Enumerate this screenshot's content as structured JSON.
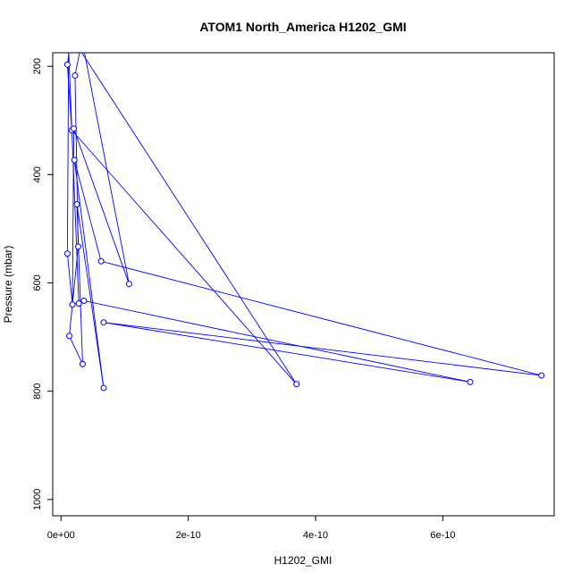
{
  "chart_data": {
    "type": "line",
    "title": "ATOM1 North_America H1202_GMI",
    "xlabel": "H1202_GMI",
    "ylabel": "Pressure (mbar)",
    "xlim": [
      -1.3e-11,
      7.75e-10
    ],
    "ylim": [
      1030,
      175
    ],
    "y_inverted": true,
    "grid": false,
    "legend": "none",
    "x_ticks": [
      {
        "value": 0,
        "label": "0e+00"
      },
      {
        "value": 2e-10,
        "label": "2e-10"
      },
      {
        "value": 4e-10,
        "label": "4e-10"
      },
      {
        "value": 6e-10,
        "label": "6e-10"
      }
    ],
    "y_ticks": [
      {
        "value": 200,
        "label": "200"
      },
      {
        "value": 400,
        "label": "400"
      },
      {
        "value": 600,
        "label": "600"
      },
      {
        "value": 800,
        "label": "800"
      },
      {
        "value": 1000,
        "label": "1000"
      }
    ],
    "series": [
      {
        "color": "#0000ff",
        "points": [
          {
            "x": 1.3e-11,
            "y": 170
          },
          {
            "x": 1e-11,
            "y": 197
          },
          {
            "x": 1.7e-11,
            "y": 318
          },
          {
            "x": 3.7e-10,
            "y": 787
          },
          {
            "x": 3e-11,
            "y": 170
          },
          {
            "x": 2.2e-11,
            "y": 217
          },
          {
            "x": 2.7e-11,
            "y": 533
          },
          {
            "x": 1.3e-11,
            "y": 698
          },
          {
            "x": 3.4e-11,
            "y": 750
          },
          {
            "x": 2.5e-11,
            "y": 455
          },
          {
            "x": 6.7e-11,
            "y": 794
          },
          {
            "x": 2.1e-11,
            "y": 373
          },
          {
            "x": 6.3e-11,
            "y": 560
          },
          {
            "x": 7.55e-10,
            "y": 771
          },
          {
            "x": 6.7e-11,
            "y": 673
          },
          {
            "x": 6.43e-10,
            "y": 783
          },
          {
            "x": 3.6e-11,
            "y": 633
          },
          {
            "x": 2.8e-11,
            "y": 638
          },
          {
            "x": 1.2e-11,
            "y": 170
          },
          {
            "x": 1e-11,
            "y": 546
          },
          {
            "x": 1.8e-11,
            "y": 640
          },
          {
            "x": 2e-11,
            "y": 315
          },
          {
            "x": 1.07e-10,
            "y": 602
          },
          {
            "x": 3.6e-11,
            "y": 170
          }
        ]
      }
    ]
  }
}
